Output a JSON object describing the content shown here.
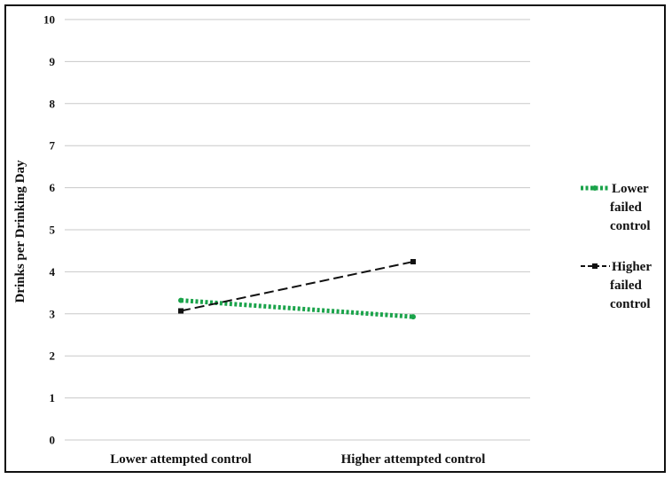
{
  "chart_data": {
    "type": "line",
    "title": "",
    "xlabel": "",
    "ylabel": "Drinks per Drinking Day",
    "categories": [
      "Lower attempted control",
      "Higher attempted control"
    ],
    "ylim": [
      0,
      10
    ],
    "yticks": [
      0,
      1,
      2,
      3,
      4,
      5,
      6,
      7,
      8,
      9,
      10
    ],
    "grid": true,
    "legend_position": "right",
    "series": [
      {
        "name": "Lower failed control",
        "legend_lines": [
          "Lower",
          "failed",
          "control"
        ],
        "values": [
          3.32,
          2.93
        ],
        "color": "#1aa34a",
        "style": "dotted"
      },
      {
        "name": "Higher failed control",
        "legend_lines": [
          "Higher",
          "failed",
          "control"
        ],
        "values": [
          3.07,
          4.24
        ],
        "color": "#111111",
        "style": "dashed"
      }
    ]
  }
}
